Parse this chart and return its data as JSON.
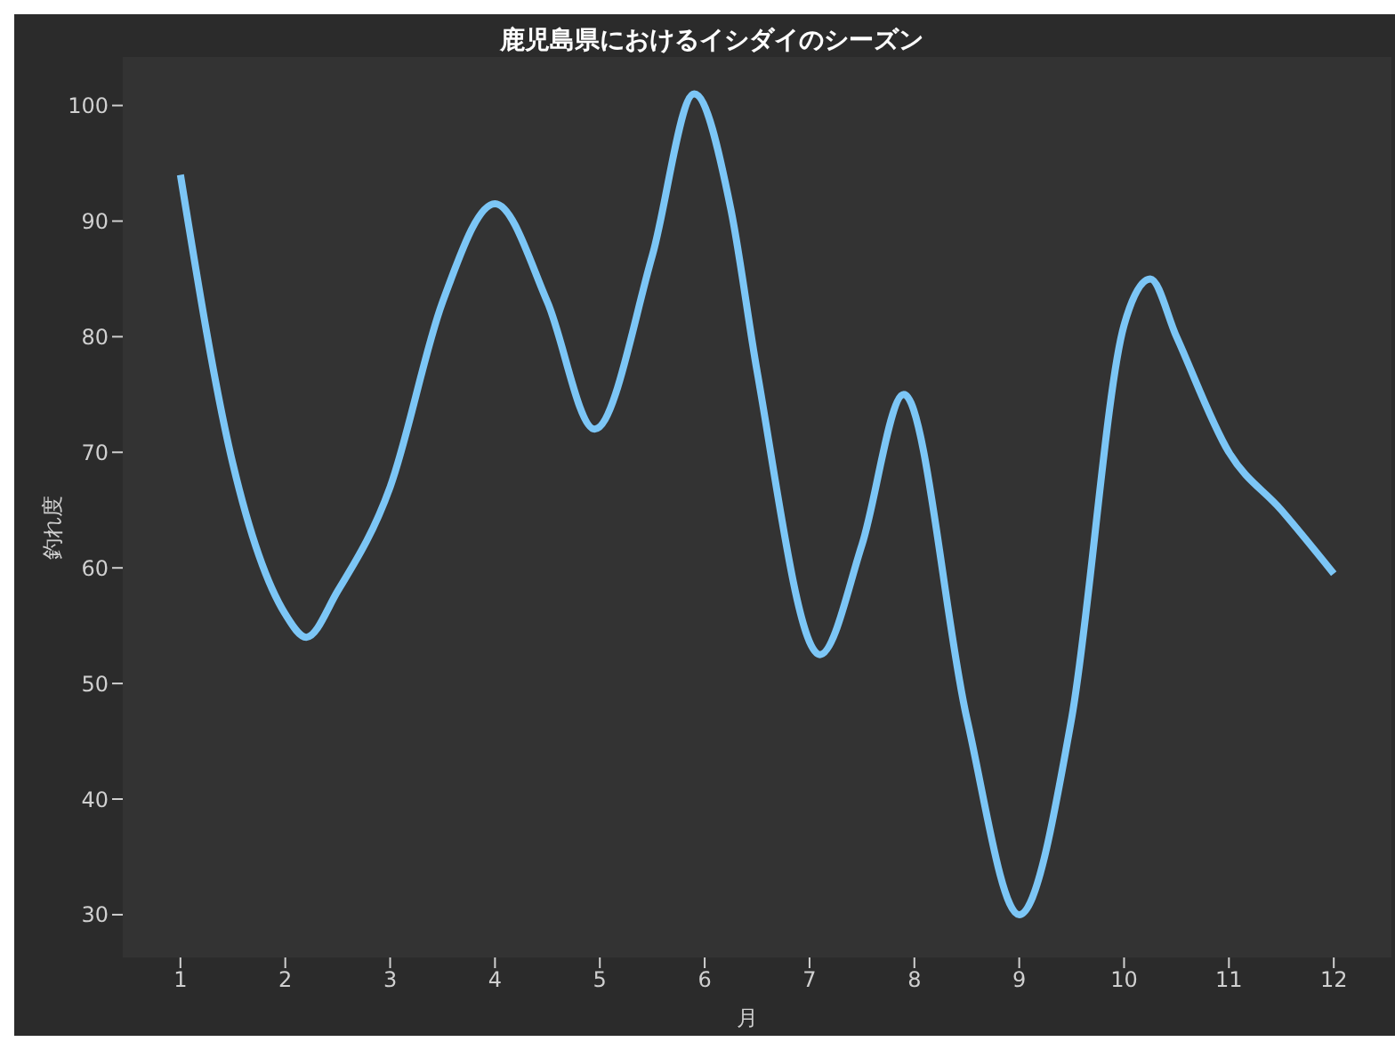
{
  "chart_data": {
    "type": "line",
    "title": "鹿児島県におけるイシダイのシーズン",
    "xlabel": "月",
    "ylabel": "釣れ度",
    "x": [
      1,
      1.5,
      2,
      2.2,
      2.5,
      3,
      3.5,
      4,
      4.5,
      4.95,
      5.5,
      5.9,
      6.25,
      6.5,
      7.1,
      7.5,
      7.9,
      8.5,
      9,
      9.5,
      10,
      10.25,
      10.5,
      11,
      11.5,
      12
    ],
    "series": [
      {
        "color": "#7cc6f6",
        "values": [
          94,
          69,
          56,
          54,
          58,
          67,
          83,
          91.5,
          83,
          72,
          87,
          101,
          91,
          77,
          52.5,
          62,
          75,
          47,
          30,
          47,
          81,
          85,
          80,
          70,
          65,
          59.5
        ]
      }
    ],
    "xlim": [
      0.45,
      12.55
    ],
    "xticks": [
      1,
      2,
      3,
      4,
      5,
      6,
      7,
      8,
      9,
      10,
      11,
      12
    ],
    "ylim": [
      26.3,
      104.2
    ],
    "yticks": [
      30,
      40,
      50,
      60,
      70,
      80,
      90,
      100
    ],
    "grid": false,
    "legend": false,
    "marker": "none",
    "line_style": "solid"
  }
}
